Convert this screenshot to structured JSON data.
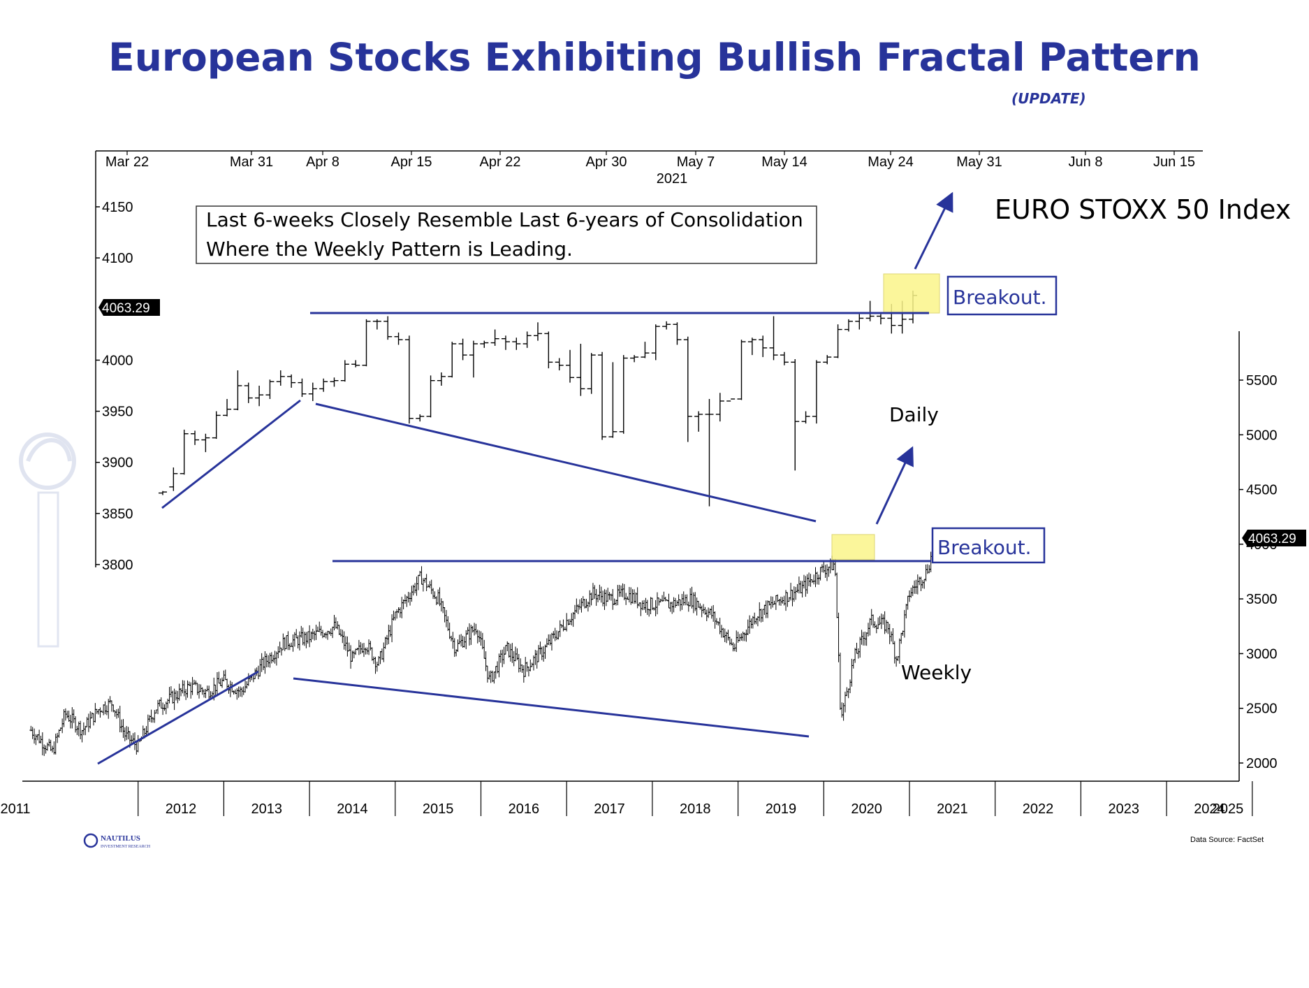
{
  "header": {
    "title": "European Stocks Exhibiting Bullish Fractal Pattern",
    "subtitle": "(UPDATE)"
  },
  "colors": {
    "title": "#27339a",
    "trendline": "#27339a",
    "highlight": "#fbf58a",
    "bars": "#000000"
  },
  "annotations": {
    "note_line1": "Last 6-weeks Closely Resemble Last 6-years of Consolidation",
    "note_line2": "Where the Weekly Pattern is Leading.",
    "index_name": "EURO STOXX 50 Index",
    "daily_label": "Daily",
    "weekly_label": "Weekly",
    "breakout_daily": "Breakout.",
    "breakout_weekly": "Breakout.",
    "price_tag_left": "4063.29",
    "price_tag_right": "4063.29"
  },
  "footer": {
    "logo_text": "NAUTILUS",
    "logo_subtext": "INVESTMENT RESEARCH",
    "source": "Data Source: FactSet"
  },
  "chart_data": [
    {
      "type": "ohlc",
      "name": "Daily",
      "x_tick_labels": [
        "Mar 22",
        "Mar 31",
        "Apr 8",
        "Apr 15",
        "Apr 22",
        "Apr 30",
        "May 7",
        "May 14",
        "May 24",
        "May 31",
        "Jun 8",
        "Jun 15"
      ],
      "x_year_label": "2021",
      "y_ticks": [
        3800,
        3850,
        3900,
        3950,
        4000,
        4100,
        4150
      ],
      "ylim": [
        3790,
        4160
      ],
      "last_value": 4063.29,
      "resistance": 4043,
      "bars": [
        {
          "o": 3870,
          "h": 3872,
          "l": 3868,
          "c": 3871
        },
        {
          "o": 3876,
          "h": 3895,
          "l": 3872,
          "c": 3889
        },
        {
          "o": 3889,
          "h": 3932,
          "l": 3888,
          "c": 3928
        },
        {
          "o": 3928,
          "h": 3931,
          "l": 3917,
          "c": 3922
        },
        {
          "o": 3922,
          "h": 3928,
          "l": 3910,
          "c": 3924
        },
        {
          "o": 3924,
          "h": 3950,
          "l": 3923,
          "c": 3946
        },
        {
          "o": 3946,
          "h": 3962,
          "l": 3945,
          "c": 3952
        },
        {
          "o": 3952,
          "h": 3990,
          "l": 3951,
          "c": 3975
        },
        {
          "o": 3975,
          "h": 3978,
          "l": 3958,
          "c": 3963
        },
        {
          "o": 3963,
          "h": 3975,
          "l": 3955,
          "c": 3966
        },
        {
          "o": 3966,
          "h": 3981,
          "l": 3962,
          "c": 3979
        },
        {
          "o": 3979,
          "h": 3990,
          "l": 3975,
          "c": 3984
        },
        {
          "o": 3984,
          "h": 3986,
          "l": 3973,
          "c": 3978
        },
        {
          "o": 3978,
          "h": 3982,
          "l": 3964,
          "c": 3967
        },
        {
          "o": 3967,
          "h": 3978,
          "l": 3960,
          "c": 3972
        },
        {
          "o": 3972,
          "h": 3982,
          "l": 3969,
          "c": 3979
        },
        {
          "o": 3979,
          "h": 3983,
          "l": 3974,
          "c": 3980
        },
        {
          "o": 3980,
          "h": 4000,
          "l": 3979,
          "c": 3996
        },
        {
          "o": 3996,
          "h": 4000,
          "l": 3993,
          "c": 3995
        },
        {
          "o": 3995,
          "h": 4040,
          "l": 3994,
          "c": 4038
        },
        {
          "o": 4038,
          "h": 4040,
          "l": 4030,
          "c": 4038
        },
        {
          "o": 4038,
          "h": 4043,
          "l": 4020,
          "c": 4023
        },
        {
          "o": 4023,
          "h": 4027,
          "l": 4015,
          "c": 4020
        },
        {
          "o": 4020,
          "h": 4024,
          "l": 3938,
          "c": 3943
        },
        {
          "o": 3943,
          "h": 3947,
          "l": 3940,
          "c": 3945
        },
        {
          "o": 3945,
          "h": 3985,
          "l": 3944,
          "c": 3980
        },
        {
          "o": 3980,
          "h": 3988,
          "l": 3975,
          "c": 3984
        },
        {
          "o": 3984,
          "h": 4018,
          "l": 3983,
          "c": 4016
        },
        {
          "o": 4016,
          "h": 4021,
          "l": 4000,
          "c": 4005
        },
        {
          "o": 4005,
          "h": 4019,
          "l": 3983,
          "c": 4016
        },
        {
          "o": 4016,
          "h": 4019,
          "l": 4012,
          "c": 4017
        },
        {
          "o": 4017,
          "h": 4030,
          "l": 4014,
          "c": 4021
        },
        {
          "o": 4021,
          "h": 4024,
          "l": 4010,
          "c": 4018
        },
        {
          "o": 4018,
          "h": 4022,
          "l": 4010,
          "c": 4016
        },
        {
          "o": 4016,
          "h": 4028,
          "l": 4012,
          "c": 4024
        },
        {
          "o": 4024,
          "h": 4037,
          "l": 4019,
          "c": 4026
        },
        {
          "o": 4026,
          "h": 4028,
          "l": 3992,
          "c": 3998
        },
        {
          "o": 3998,
          "h": 4002,
          "l": 3990,
          "c": 3995
        },
        {
          "o": 3995,
          "h": 4010,
          "l": 3978,
          "c": 3983
        },
        {
          "o": 3983,
          "h": 4016,
          "l": 3965,
          "c": 3972
        },
        {
          "o": 3972,
          "h": 4007,
          "l": 3967,
          "c": 4005
        },
        {
          "o": 4005,
          "h": 4008,
          "l": 3922,
          "c": 3925
        },
        {
          "o": 3925,
          "h": 3998,
          "l": 3924,
          "c": 3930
        },
        {
          "o": 3930,
          "h": 4005,
          "l": 3928,
          "c": 4002
        },
        {
          "o": 4002,
          "h": 4005,
          "l": 3998,
          "c": 4003
        },
        {
          "o": 4003,
          "h": 4018,
          "l": 4002,
          "c": 4007
        },
        {
          "o": 4007,
          "h": 4035,
          "l": 4000,
          "c": 4033
        },
        {
          "o": 4033,
          "h": 4038,
          "l": 4030,
          "c": 4035
        },
        {
          "o": 4035,
          "h": 4037,
          "l": 4015,
          "c": 4020
        },
        {
          "o": 4020,
          "h": 4023,
          "l": 3920,
          "c": 3945
        },
        {
          "o": 3945,
          "h": 3950,
          "l": 3930,
          "c": 3947
        },
        {
          "o": 3947,
          "h": 3962,
          "l": 3857,
          "c": 3947
        },
        {
          "o": 3947,
          "h": 3968,
          "l": 3940,
          "c": 3960
        },
        {
          "o": 3960,
          "h": 3962,
          "l": 3962,
          "c": 3962
        },
        {
          "o": 3962,
          "h": 4020,
          "l": 3961,
          "c": 4018
        },
        {
          "o": 4018,
          "h": 4022,
          "l": 4005,
          "c": 4020
        },
        {
          "o": 4020,
          "h": 4024,
          "l": 4003,
          "c": 4012
        },
        {
          "o": 4012,
          "h": 4043,
          "l": 4000,
          "c": 4005
        },
        {
          "o": 4005,
          "h": 4008,
          "l": 3995,
          "c": 3998
        },
        {
          "o": 3998,
          "h": 4001,
          "l": 3892,
          "c": 3940
        },
        {
          "o": 3940,
          "h": 3950,
          "l": 3938,
          "c": 3945
        },
        {
          "o": 3945,
          "h": 4000,
          "l": 3938,
          "c": 3998
        },
        {
          "o": 3998,
          "h": 4005,
          "l": 3996,
          "c": 4003
        },
        {
          "o": 4003,
          "h": 4035,
          "l": 4002,
          "c": 4030
        },
        {
          "o": 4030,
          "h": 4040,
          "l": 4028,
          "c": 4038
        },
        {
          "o": 4038,
          "h": 4045,
          "l": 4030,
          "c": 4041
        },
        {
          "o": 4041,
          "h": 4058,
          "l": 4038,
          "c": 4043
        },
        {
          "o": 4043,
          "h": 4045,
          "l": 4035,
          "c": 4041
        },
        {
          "o": 4041,
          "h": 4055,
          "l": 4026,
          "c": 4034
        },
        {
          "o": 4034,
          "h": 4058,
          "l": 4026,
          "c": 4040
        },
        {
          "o": 4040,
          "h": 4068,
          "l": 4036,
          "c": 4063.29
        }
      ]
    },
    {
      "type": "ohlc",
      "name": "Weekly",
      "x_tick_labels": [
        "2011",
        "2012",
        "2013",
        "2014",
        "2015",
        "2016",
        "2017",
        "2018",
        "2019",
        "2020",
        "2021",
        "2022",
        "2023",
        "2024",
        "2025"
      ],
      "y_ticks": [
        2000,
        2500,
        3000,
        3500,
        4000,
        4500,
        5000,
        5500
      ],
      "ylim": [
        1850,
        5950
      ],
      "last_value": 4063.29,
      "resistance": 3850,
      "anchors": [
        {
          "t": 2010.75,
          "v": 2300
        },
        {
          "t": 2011.0,
          "v": 2100
        },
        {
          "t": 2011.15,
          "v": 2450
        },
        {
          "t": 2011.35,
          "v": 2300
        },
        {
          "t": 2011.55,
          "v": 2500
        },
        {
          "t": 2011.7,
          "v": 2550
        },
        {
          "t": 2011.85,
          "v": 2250
        },
        {
          "t": 2012.0,
          "v": 2150
        },
        {
          "t": 2012.2,
          "v": 2500
        },
        {
          "t": 2012.4,
          "v": 2600
        },
        {
          "t": 2012.6,
          "v": 2700
        },
        {
          "t": 2012.8,
          "v": 2650
        },
        {
          "t": 2013.0,
          "v": 2750
        },
        {
          "t": 2013.2,
          "v": 2650
        },
        {
          "t": 2013.45,
          "v": 2900
        },
        {
          "t": 2013.7,
          "v": 3100
        },
        {
          "t": 2014.0,
          "v": 3150
        },
        {
          "t": 2014.3,
          "v": 3250
        },
        {
          "t": 2014.5,
          "v": 2950
        },
        {
          "t": 2014.65,
          "v": 3100
        },
        {
          "t": 2014.8,
          "v": 2900
        },
        {
          "t": 2015.0,
          "v": 3350
        },
        {
          "t": 2015.3,
          "v": 3700
        },
        {
          "t": 2015.5,
          "v": 3500
        },
        {
          "t": 2015.7,
          "v": 3050
        },
        {
          "t": 2015.95,
          "v": 3250
        },
        {
          "t": 2016.1,
          "v": 2750
        },
        {
          "t": 2016.3,
          "v": 3050
        },
        {
          "t": 2016.5,
          "v": 2850
        },
        {
          "t": 2016.75,
          "v": 3050
        },
        {
          "t": 2017.0,
          "v": 3300
        },
        {
          "t": 2017.3,
          "v": 3550
        },
        {
          "t": 2017.5,
          "v": 3500
        },
        {
          "t": 2017.7,
          "v": 3550
        },
        {
          "t": 2017.9,
          "v": 3450
        },
        {
          "t": 2018.2,
          "v": 3450
        },
        {
          "t": 2018.45,
          "v": 3500
        },
        {
          "t": 2018.7,
          "v": 3350
        },
        {
          "t": 2018.95,
          "v": 3050
        },
        {
          "t": 2019.2,
          "v": 3350
        },
        {
          "t": 2019.5,
          "v": 3500
        },
        {
          "t": 2019.75,
          "v": 3600
        },
        {
          "t": 2019.95,
          "v": 3750
        },
        {
          "t": 2020.13,
          "v": 3820
        },
        {
          "t": 2020.2,
          "v": 2400
        },
        {
          "t": 2020.35,
          "v": 2950
        },
        {
          "t": 2020.55,
          "v": 3300
        },
        {
          "t": 2020.75,
          "v": 3250
        },
        {
          "t": 2020.85,
          "v": 2950
        },
        {
          "t": 2021.0,
          "v": 3550
        },
        {
          "t": 2021.2,
          "v": 3750
        },
        {
          "t": 2021.3,
          "v": 4000
        },
        {
          "t": 2021.4,
          "v": 4063.29
        }
      ]
    }
  ]
}
